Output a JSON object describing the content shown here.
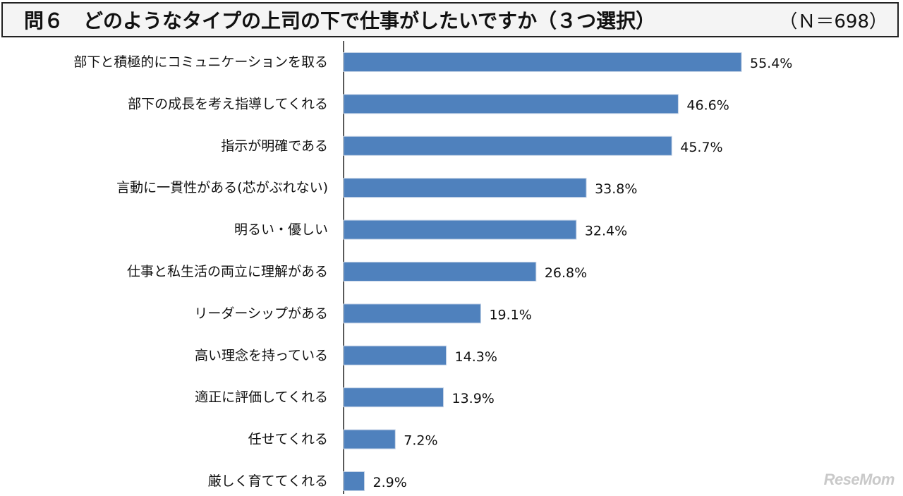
{
  "header": {
    "title": "問６　どのようなタイプの上司の下で仕事がしたいですか（３つ選択）",
    "sample": "（Ｎ＝698）"
  },
  "watermark": "ReseMom",
  "chart_data": {
    "type": "bar",
    "orientation": "horizontal",
    "categories": [
      "部下と積極的にコミュニケーションを取る",
      "部下の成長を考え指導してくれる",
      "指示が明確である",
      "言動に一貫性がある(芯がぶれない)",
      "明るい・優しい",
      "仕事と私生活の両立に理解がある",
      "リーダーシップがある",
      "高い理念を持っている",
      "適正に評価してくれる",
      "任せてくれる",
      "厳しく育ててくれる"
    ],
    "values": [
      55.4,
      46.6,
      45.7,
      33.8,
      32.4,
      26.8,
      19.1,
      14.3,
      13.9,
      7.2,
      2.9
    ],
    "value_labels": [
      "55.4%",
      "46.6%",
      "45.7%",
      "33.8%",
      "32.4%",
      "26.8%",
      "19.1%",
      "14.3%",
      "13.9%",
      "7.2%",
      "2.9%"
    ],
    "xlim": [
      0,
      60
    ],
    "bar_color": "#4f81bd",
    "grid": false,
    "legend": "none"
  }
}
